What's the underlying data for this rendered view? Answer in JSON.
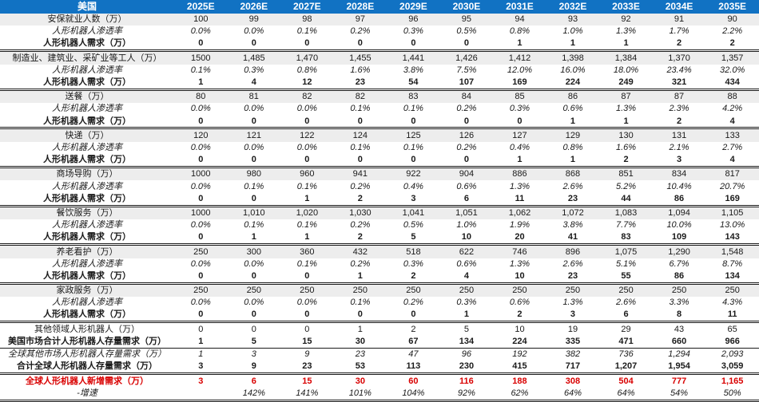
{
  "colors": {
    "header_bg": "#1172C3",
    "header_text": "#FFFFFF",
    "category_row_bg": "#EDEDED",
    "highlight_red": "#D90000",
    "text": "#1A1A1A",
    "divider": "#1A1A1A"
  },
  "table": {
    "corner_label": "美国",
    "columns": [
      "2025E",
      "2026E",
      "2027E",
      "2028E",
      "2029E",
      "2030E",
      "2031E",
      "2032E",
      "2033E",
      "2034E",
      "2035E"
    ],
    "rows": [
      {
        "label": "安保就业人数（万）",
        "type": "category",
        "divider": "none",
        "values": [
          "100",
          "99",
          "98",
          "97",
          "96",
          "95",
          "94",
          "93",
          "92",
          "91",
          "90"
        ]
      },
      {
        "label": "人形机器人渗透率",
        "type": "penetration",
        "divider": "none",
        "values": [
          "0.0%",
          "0.0%",
          "0.1%",
          "0.2%",
          "0.3%",
          "0.5%",
          "0.8%",
          "1.0%",
          "1.3%",
          "1.7%",
          "2.2%"
        ]
      },
      {
        "label": "人形机器人需求（万）",
        "type": "demand",
        "divider": "double",
        "values": [
          "0",
          "0",
          "0",
          "0",
          "0",
          "0",
          "1",
          "1",
          "1",
          "2",
          "2"
        ]
      },
      {
        "label": "制造业、建筑业、采矿业等工人（万）",
        "type": "category",
        "divider": "none",
        "values": [
          "1500",
          "1,485",
          "1,470",
          "1,455",
          "1,441",
          "1,426",
          "1,412",
          "1,398",
          "1,384",
          "1,370",
          "1,357"
        ]
      },
      {
        "label": "人形机器人渗透率",
        "type": "penetration",
        "divider": "none",
        "values": [
          "0.1%",
          "0.3%",
          "0.8%",
          "1.6%",
          "3.8%",
          "7.5%",
          "12.0%",
          "16.0%",
          "18.0%",
          "23.4%",
          "32.0%"
        ]
      },
      {
        "label": "人形机器人需求（万）",
        "type": "demand",
        "divider": "double",
        "values": [
          "1",
          "4",
          "12",
          "23",
          "54",
          "107",
          "169",
          "224",
          "249",
          "321",
          "434"
        ]
      },
      {
        "label": "送餐（万）",
        "type": "category",
        "divider": "none",
        "values": [
          "80",
          "81",
          "82",
          "82",
          "83",
          "84",
          "85",
          "86",
          "87",
          "87",
          "88"
        ]
      },
      {
        "label": "人形机器人渗透率",
        "type": "penetration",
        "divider": "none",
        "values": [
          "0.0%",
          "0.0%",
          "0.0%",
          "0.1%",
          "0.1%",
          "0.2%",
          "0.3%",
          "0.6%",
          "1.3%",
          "2.3%",
          "4.2%"
        ]
      },
      {
        "label": "人形机器人需求（万）",
        "type": "demand",
        "divider": "double",
        "values": [
          "0",
          "0",
          "0",
          "0",
          "0",
          "0",
          "0",
          "1",
          "1",
          "2",
          "4"
        ]
      },
      {
        "label": "快递（万）",
        "type": "category",
        "divider": "none",
        "values": [
          "120",
          "121",
          "122",
          "124",
          "125",
          "126",
          "127",
          "129",
          "130",
          "131",
          "133"
        ]
      },
      {
        "label": "人形机器人渗透率",
        "type": "penetration",
        "divider": "none",
        "values": [
          "0.0%",
          "0.0%",
          "0.0%",
          "0.1%",
          "0.1%",
          "0.2%",
          "0.4%",
          "0.8%",
          "1.6%",
          "2.1%",
          "2.7%"
        ]
      },
      {
        "label": "人形机器人需求（万）",
        "type": "demand",
        "divider": "double",
        "values": [
          "0",
          "0",
          "0",
          "0",
          "0",
          "0",
          "1",
          "1",
          "2",
          "3",
          "4"
        ]
      },
      {
        "label": "商场导购（万）",
        "type": "category",
        "divider": "none",
        "values": [
          "1000",
          "980",
          "960",
          "941",
          "922",
          "904",
          "886",
          "868",
          "851",
          "834",
          "817"
        ]
      },
      {
        "label": "人形机器人渗透率",
        "type": "penetration",
        "divider": "none",
        "values": [
          "0.0%",
          "0.1%",
          "0.1%",
          "0.2%",
          "0.4%",
          "0.6%",
          "1.3%",
          "2.6%",
          "5.2%",
          "10.4%",
          "20.7%"
        ]
      },
      {
        "label": "人形机器人需求（万）",
        "type": "demand",
        "divider": "double",
        "values": [
          "0",
          "0",
          "1",
          "2",
          "3",
          "6",
          "11",
          "23",
          "44",
          "86",
          "169"
        ]
      },
      {
        "label": "餐饮服务（万）",
        "type": "category",
        "divider": "none",
        "values": [
          "1000",
          "1,010",
          "1,020",
          "1,030",
          "1,041",
          "1,051",
          "1,062",
          "1,072",
          "1,083",
          "1,094",
          "1,105"
        ]
      },
      {
        "label": "人形机器人渗透率",
        "type": "penetration",
        "divider": "none",
        "values": [
          "0.0%",
          "0.1%",
          "0.1%",
          "0.2%",
          "0.5%",
          "1.0%",
          "1.9%",
          "3.8%",
          "7.7%",
          "10.0%",
          "13.0%"
        ]
      },
      {
        "label": "人形机器人需求（万）",
        "type": "demand",
        "divider": "double",
        "values": [
          "0",
          "1",
          "1",
          "2",
          "5",
          "10",
          "20",
          "41",
          "83",
          "109",
          "143"
        ]
      },
      {
        "label": "养老看护（万）",
        "type": "category",
        "divider": "none",
        "values": [
          "250",
          "300",
          "360",
          "432",
          "518",
          "622",
          "746",
          "896",
          "1,075",
          "1,290",
          "1,548"
        ]
      },
      {
        "label": "人形机器人渗透率",
        "type": "penetration",
        "divider": "none",
        "values": [
          "0.0%",
          "0.0%",
          "0.1%",
          "0.2%",
          "0.3%",
          "0.6%",
          "1.3%",
          "2.6%",
          "5.1%",
          "6.7%",
          "8.7%"
        ]
      },
      {
        "label": "人形机器人需求（万）",
        "type": "demand",
        "divider": "double",
        "values": [
          "0",
          "0",
          "0",
          "1",
          "2",
          "4",
          "10",
          "23",
          "55",
          "86",
          "134"
        ]
      },
      {
        "label": "家政服务（万）",
        "type": "category",
        "divider": "none",
        "values": [
          "250",
          "250",
          "250",
          "250",
          "250",
          "250",
          "250",
          "250",
          "250",
          "250",
          "250"
        ]
      },
      {
        "label": "人形机器人渗透率",
        "type": "penetration",
        "divider": "none",
        "values": [
          "0.0%",
          "0.0%",
          "0.0%",
          "0.1%",
          "0.2%",
          "0.3%",
          "0.6%",
          "1.3%",
          "2.6%",
          "3.3%",
          "4.3%"
        ]
      },
      {
        "label": "人形机器人需求（万）",
        "type": "demand",
        "divider": "double",
        "values": [
          "0",
          "0",
          "0",
          "0",
          "0",
          "1",
          "2",
          "3",
          "6",
          "8",
          "11"
        ]
      },
      {
        "label": "其他领域人形机器人（万）",
        "type": "plain",
        "divider": "none",
        "values": [
          "0",
          "0",
          "0",
          "1",
          "2",
          "5",
          "10",
          "19",
          "29",
          "43",
          "65"
        ]
      },
      {
        "label": "美国市场合计人形机器人存量需求（万）",
        "type": "us_total",
        "divider": "single",
        "values": [
          "1",
          "5",
          "15",
          "30",
          "67",
          "134",
          "224",
          "335",
          "471",
          "660",
          "966"
        ]
      },
      {
        "label": "全球其他市场人形机器人存量需求（万）",
        "type": "global_other",
        "divider": "none",
        "values": [
          "1",
          "3",
          "9",
          "23",
          "47",
          "96",
          "192",
          "382",
          "736",
          "1,294",
          "2,093"
        ]
      },
      {
        "label": "合计全球人形机器人存量需求（万）",
        "type": "global_total",
        "divider": "double",
        "values": [
          "3",
          "9",
          "23",
          "53",
          "113",
          "230",
          "415",
          "717",
          "1,207",
          "1,954",
          "3,059"
        ]
      },
      {
        "label": "全球人形机器人新增需求（万）",
        "type": "new_demand",
        "divider": "none",
        "values": [
          "3",
          "6",
          "15",
          "30",
          "60",
          "116",
          "188",
          "308",
          "504",
          "777",
          "1,165"
        ]
      },
      {
        "label": "-增速",
        "type": "growth",
        "divider": "double",
        "values": [
          "",
          "142%",
          "141%",
          "101%",
          "104%",
          "92%",
          "62%",
          "64%",
          "64%",
          "54%",
          "50%"
        ]
      }
    ]
  }
}
